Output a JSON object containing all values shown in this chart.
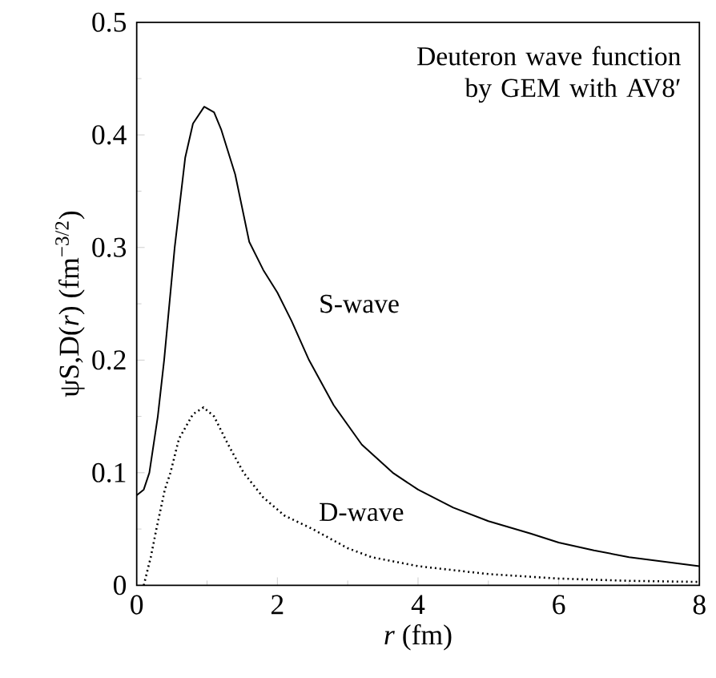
{
  "chart_data": {
    "type": "line",
    "xlabel": "*r* (fm)",
    "ylabel": "ψS,D(*r*) (fm$^{−3/2}$)",
    "annotations": [
      "Deuteron wave function by GEM with AV8′"
    ],
    "series": [
      {
        "name": "S-wave",
        "color": "#000000",
        "line_style": "solid",
        "x": [
          0,
          0.1,
          0.18,
          0.3,
          0.39,
          0.54,
          0.69,
          0.8,
          0.96,
          1.1,
          1.2,
          1.4,
          1.6,
          1.8,
          2.0,
          2.2,
          2.45,
          2.8,
          3.2,
          3.64,
          4,
          4.5,
          5,
          5.6,
          6,
          6.5,
          7,
          7.5,
          8
        ],
        "values": [
          0.08,
          0.085,
          0.1,
          0.15,
          0.2,
          0.3,
          0.38,
          0.41,
          0.425,
          0.42,
          0.405,
          0.365,
          0.305,
          0.28,
          0.26,
          0.235,
          0.2,
          0.16,
          0.125,
          0.1,
          0.085,
          0.069,
          0.057,
          0.046,
          0.038,
          0.031,
          0.025,
          0.021,
          0.017
        ]
      },
      {
        "name": "D-wave",
        "color": "#000000",
        "line_style": "dotted",
        "x": [
          0.1,
          0.2,
          0.28,
          0.4,
          0.48,
          0.6,
          0.8,
          0.95,
          1.1,
          1.3,
          1.52,
          1.8,
          2.1,
          2.5,
          3,
          3.34,
          4,
          5,
          6,
          7,
          8
        ],
        "values": [
          0,
          0.025,
          0.05,
          0.085,
          0.1,
          0.13,
          0.152,
          0.158,
          0.15,
          0.125,
          0.1,
          0.078,
          0.062,
          0.05,
          0.033,
          0.025,
          0.017,
          0.01,
          0.006,
          0.004,
          0.003
        ]
      }
    ],
    "xlim": [
      0,
      8
    ],
    "ylim": [
      0,
      0.5
    ],
    "xticks": [
      0,
      2,
      4,
      6,
      8
    ],
    "yticks": [
      0,
      0.1,
      0.2,
      0.3,
      0.4,
      0.5
    ],
    "grid": false,
    "marker": "none"
  }
}
